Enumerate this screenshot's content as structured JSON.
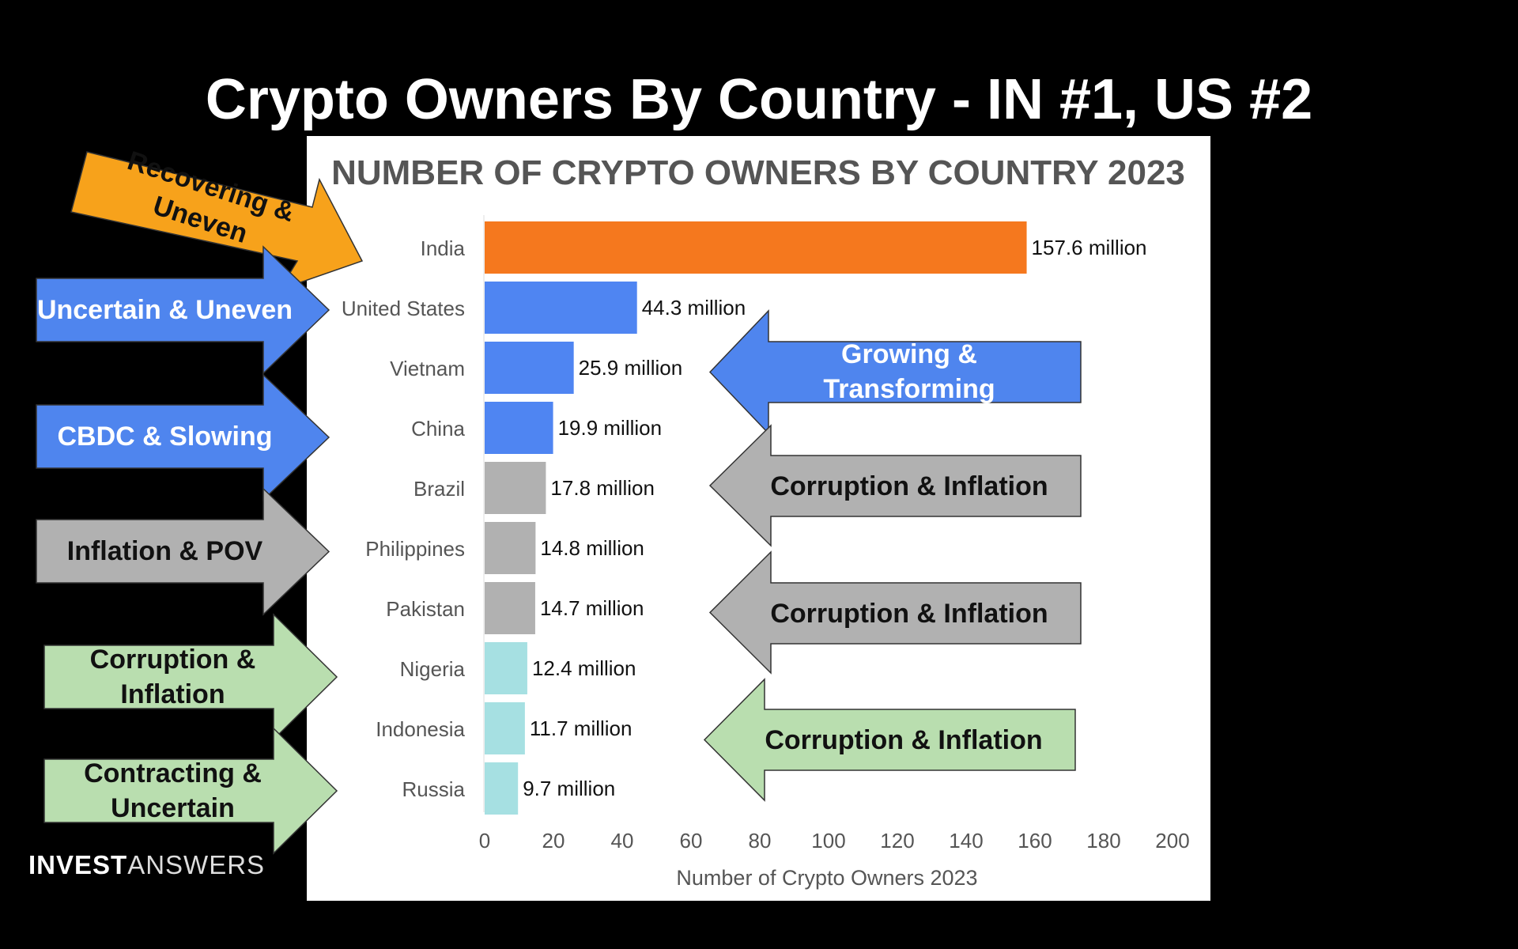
{
  "slide_title": "Crypto Owners By Country - IN #1, US #2",
  "brand": {
    "part1": "INVEST",
    "part2": "ANSWERS"
  },
  "chart_data": {
    "type": "bar",
    "orientation": "horizontal",
    "title": "NUMBER OF CRYPTO OWNERS BY COUNTRY 2023",
    "xlabel": "Number of Crypto Owners 2023",
    "ylabel": "",
    "xlim": [
      0,
      200
    ],
    "xticks": [
      0,
      20,
      40,
      60,
      80,
      100,
      120,
      140,
      160,
      180,
      200
    ],
    "grid": false,
    "categories": [
      "India",
      "United States",
      "Vietnam",
      "China",
      "Brazil",
      "Philippines",
      "Pakistan",
      "Nigeria",
      "Indonesia",
      "Russia"
    ],
    "values": [
      157.6,
      44.3,
      25.9,
      19.9,
      17.8,
      14.8,
      14.7,
      12.4,
      11.7,
      9.7
    ],
    "data_labels": [
      "157.6 million",
      "44.3 million",
      "25.9 million",
      "19.9 million",
      "17.8 million",
      "14.8 million",
      "14.7 million",
      "12.4 million",
      "11.7 million",
      "9.7 million"
    ],
    "bar_colors": [
      "#f5781e",
      "#4f85f2",
      "#4f85f2",
      "#4f85f2",
      "#b1b1b1",
      "#b1b1b1",
      "#b1b1b1",
      "#a6e0e2",
      "#a6e0e2",
      "#a6e0e2"
    ]
  },
  "annotations": {
    "left": [
      {
        "text": "Recovering & Uneven",
        "color": "#f7a21b"
      },
      {
        "text": "Uncertain & Uneven",
        "color": "#4f85ee"
      },
      {
        "text": "CBDC & Slowing",
        "color": "#4f85ee"
      },
      {
        "text": "Inflation & POV",
        "color": "#b1b1b1"
      },
      {
        "text": "Corruption & Inflation",
        "color": "#b9deaf"
      },
      {
        "text": "Contracting & Uncertain",
        "color": "#b9deaf"
      }
    ],
    "right": [
      {
        "text": "Growing & Transforming",
        "color": "#4f85ee"
      },
      {
        "text": "Corruption & Inflation",
        "color": "#b1b1b1"
      },
      {
        "text": "Corruption & Inflation",
        "color": "#b1b1b1"
      },
      {
        "text": "Corruption & Inflation",
        "color": "#b9deaf"
      }
    ]
  }
}
